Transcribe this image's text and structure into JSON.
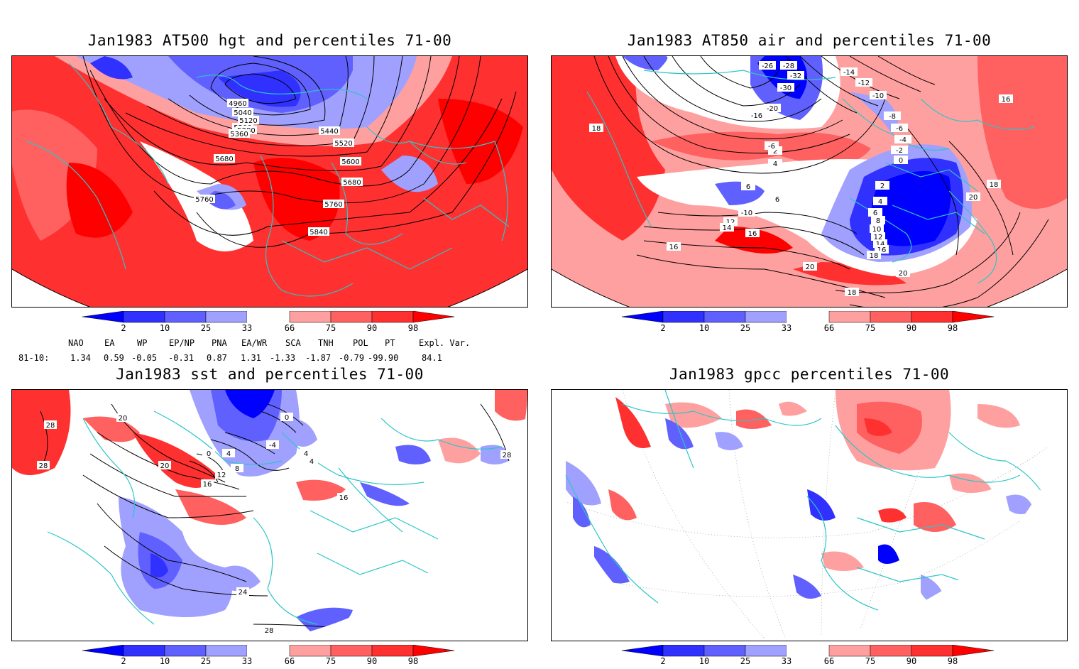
{
  "panels": [
    {
      "id": "tl",
      "title": "Jan1983 AT500 hgt and percentiles 71-00",
      "contour_labels": [
        "4960",
        "5040",
        "5120",
        "5200",
        "5280",
        "5360",
        "5440",
        "5520",
        "5600",
        "5680",
        "5680",
        "5760",
        "5760",
        "5840"
      ]
    },
    {
      "id": "tr",
      "title": "Jan1983 AT850 air and percentiles 71-00",
      "contour_labels": [
        "-26",
        "-28",
        "-32",
        "-30",
        "-14",
        "-12",
        "-10",
        "-20",
        "-16",
        "-8",
        "-6",
        "-4",
        "-2",
        "0",
        "2",
        "4",
        "6",
        "6",
        "-6",
        "-10",
        "12",
        "14",
        "16",
        "16",
        "18",
        "20",
        "2",
        "4",
        "6",
        "8",
        "10",
        "12",
        "14",
        "16",
        "18",
        "20",
        "18",
        "16",
        "18",
        "20"
      ]
    },
    {
      "id": "bl",
      "title": "Jan1983 sst and percentiles 71-00",
      "contour_labels": [
        "28",
        "28",
        "20",
        "20",
        "0",
        "4",
        "4",
        "4",
        "8",
        "12",
        "16",
        "16",
        "0",
        "-4",
        "24",
        "28",
        "28"
      ]
    },
    {
      "id": "br",
      "title": "Jan1983 gpcc percentiles 71-00",
      "contour_labels": []
    }
  ],
  "colorbar": {
    "labels": [
      "2",
      "10",
      "25",
      "33",
      "66",
      "75",
      "90",
      "98"
    ],
    "colors": {
      "below_2": "#0000ff",
      "2_10": "#3030ff",
      "10_25": "#6060ff",
      "25_33": "#a0a0ff",
      "66_75": "#ffa0a0",
      "75_90": "#ff6060",
      "90_98": "#ff3030",
      "above_98": "#ff0000",
      "neutral": "#ffffff",
      "coast": "#2cc6c6"
    }
  },
  "indices": {
    "headers": [
      "NAO",
      "EA",
      "WP",
      "EP/NP",
      "PNA",
      "EA/WR",
      "SCA",
      "TNH",
      "POL",
      "PT",
      "Expl. Var."
    ],
    "row_label": "81-10:",
    "values": [
      "1.34",
      "0.59",
      "-0.05",
      "-0.31",
      "0.87",
      "1.31",
      "-1.33",
      "-1.87",
      "-0.79",
      "-99.90",
      "84.1"
    ]
  }
}
